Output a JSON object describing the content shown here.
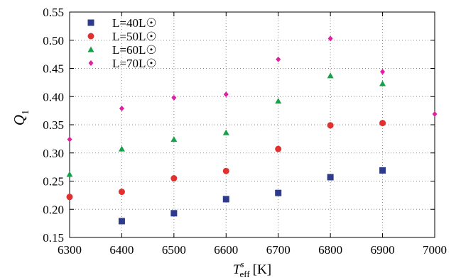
{
  "chart_data": {
    "type": "scatter",
    "xlabel": {
      "main": "T",
      "sup": "s",
      "sub": "eff",
      "unit": "[K]"
    },
    "ylabel": {
      "main": "Q",
      "sub": "1"
    },
    "xlim": [
      6300,
      7000
    ],
    "ylim": [
      0.15,
      0.55
    ],
    "x_ticks": [
      "6300",
      "6400",
      "6500",
      "6600",
      "6700",
      "6800",
      "6900",
      "7000"
    ],
    "y_ticks": [
      "0.15",
      "0.20",
      "0.25",
      "0.30",
      "0.35",
      "0.40",
      "0.45",
      "0.50",
      "0.55"
    ],
    "grid": true,
    "legend_position": "top-left",
    "series": [
      {
        "name": "L=40L☉",
        "marker": "square",
        "color": "#2e3a8c",
        "points": [
          [
            6400,
            0.179
          ],
          [
            6500,
            0.193
          ],
          [
            6600,
            0.218
          ],
          [
            6700,
            0.229
          ],
          [
            6800,
            0.257
          ],
          [
            6900,
            0.269
          ]
        ]
      },
      {
        "name": "L=50L☉",
        "marker": "circle",
        "color": "#e03030",
        "points": [
          [
            6300,
            0.222
          ],
          [
            6400,
            0.231
          ],
          [
            6500,
            0.255
          ],
          [
            6600,
            0.268
          ],
          [
            6700,
            0.307
          ],
          [
            6800,
            0.349
          ],
          [
            6900,
            0.353
          ]
        ]
      },
      {
        "name": "L=60L☉",
        "marker": "triangle",
        "color": "#15a04a",
        "points": [
          [
            6300,
            0.262
          ],
          [
            6400,
            0.307
          ],
          [
            6500,
            0.324
          ],
          [
            6600,
            0.336
          ],
          [
            6700,
            0.392
          ],
          [
            6800,
            0.437
          ],
          [
            6900,
            0.423
          ]
        ]
      },
      {
        "name": "L=70L☉",
        "marker": "diamond",
        "color": "#e020a0",
        "points": [
          [
            6300,
            0.324
          ],
          [
            6400,
            0.379
          ],
          [
            6500,
            0.398
          ],
          [
            6600,
            0.404
          ],
          [
            6700,
            0.466
          ],
          [
            6800,
            0.503
          ],
          [
            6900,
            0.444
          ],
          [
            7000,
            0.369
          ]
        ]
      }
    ]
  }
}
